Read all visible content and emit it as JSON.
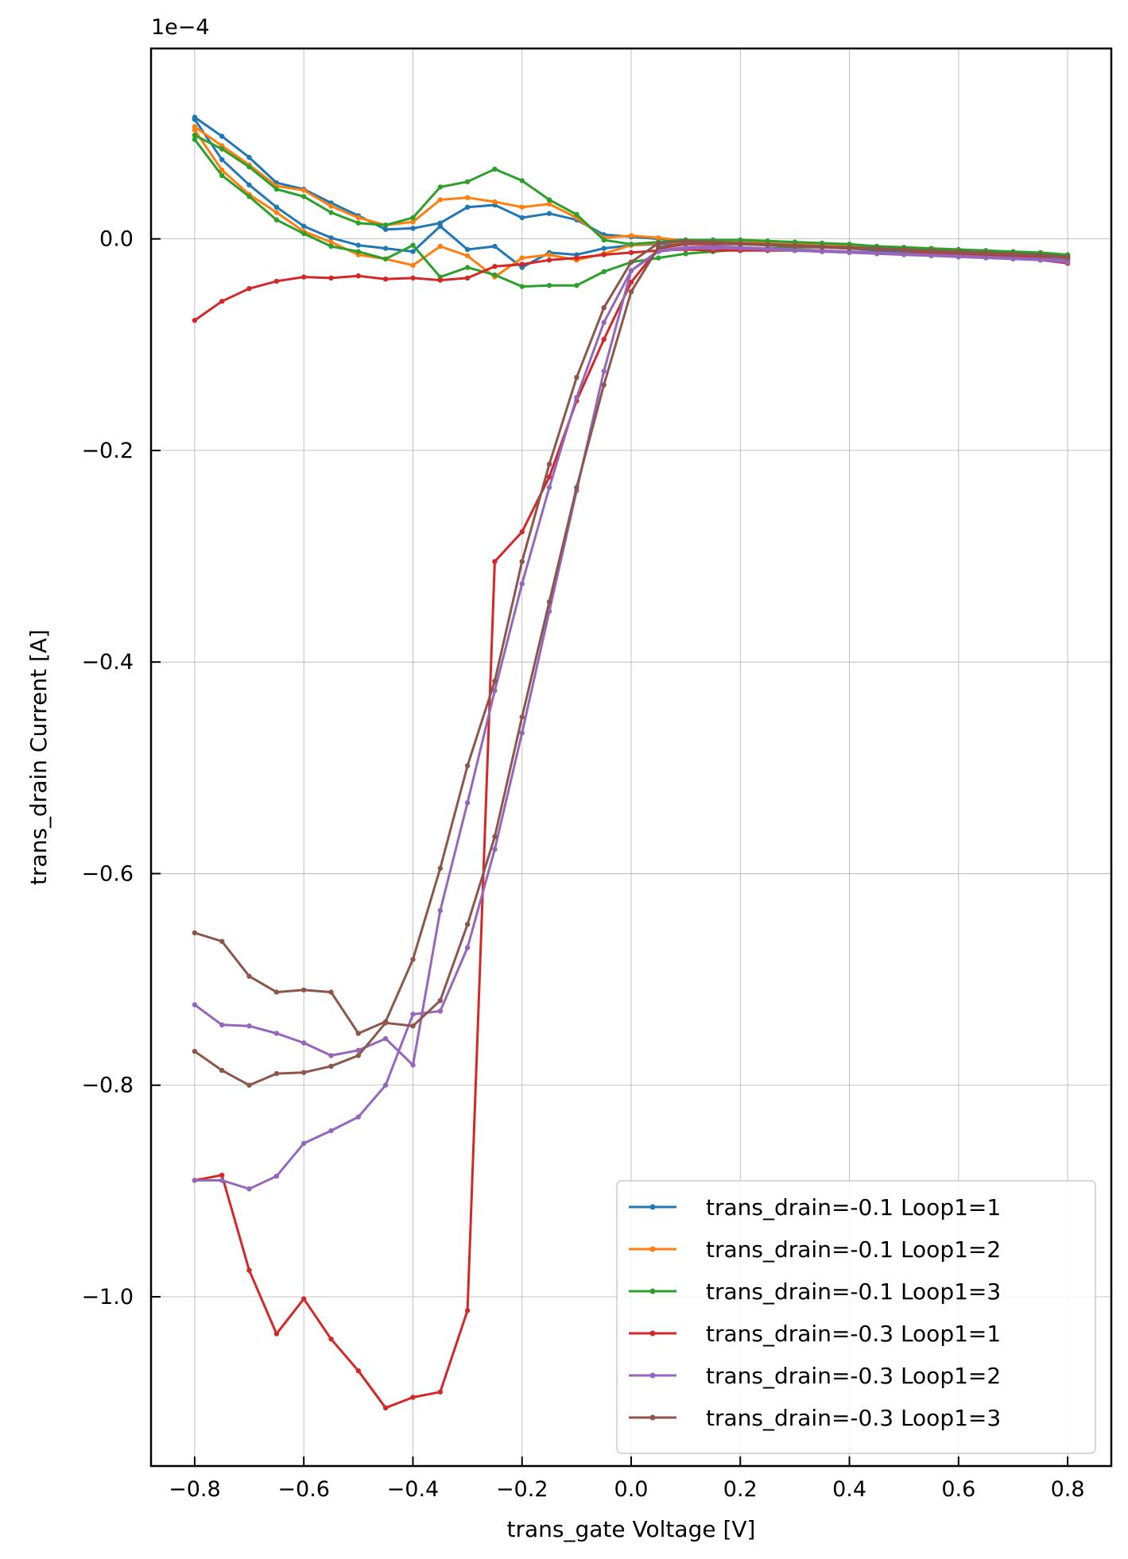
{
  "chart_data": {
    "type": "line",
    "xlabel": "trans_gate Voltage [V]",
    "ylabel": "trans_drain Current [A]",
    "offset_label": "1e−4",
    "y_scale_factor": 0.0001,
    "xlim": [
      -0.88,
      0.88
    ],
    "ylim": [
      -1.16,
      0.18
    ],
    "x_ticks": [
      -0.8,
      -0.6,
      -0.4,
      -0.2,
      0.0,
      0.2,
      0.4,
      0.6,
      0.8
    ],
    "x_tick_labels": [
      "−0.8",
      "−0.6",
      "−0.4",
      "−0.2",
      "0.0",
      "0.2",
      "0.4",
      "0.6",
      "0.8"
    ],
    "y_ticks": [
      0.0,
      -0.2,
      -0.4,
      -0.6,
      -0.8,
      -1.0
    ],
    "y_tick_labels": [
      "0.0",
      "−0.2",
      "−0.4",
      "−0.6",
      "−0.8",
      "−1.0"
    ],
    "grid": true,
    "legend_position": "lower-right",
    "x": [
      -0.8,
      -0.75,
      -0.7,
      -0.65,
      -0.6,
      -0.55,
      -0.5,
      -0.45,
      -0.4,
      -0.35,
      -0.3,
      -0.25,
      -0.2,
      -0.15,
      -0.1,
      -0.05,
      0.0,
      0.05,
      0.1,
      0.15,
      0.2,
      0.25,
      0.3,
      0.35,
      0.4,
      0.45,
      0.5,
      0.55,
      0.6,
      0.65,
      0.7,
      0.75,
      0.8
    ],
    "series": [
      {
        "name": "trans_drain=-0.1 Loop1=1",
        "color": "#1f77b4",
        "forward": [
          0.115,
          0.097,
          0.077,
          0.053,
          0.047,
          0.034,
          0.022,
          0.009,
          0.01,
          0.015,
          0.03,
          0.032,
          0.02,
          0.024,
          0.018,
          0.004,
          0.002,
          0.0,
          -0.001,
          -0.001,
          -0.002,
          -0.003,
          -0.004,
          -0.005,
          -0.006,
          -0.008,
          -0.009,
          -0.01,
          -0.011,
          -0.012,
          -0.014,
          -0.016,
          -0.018
        ],
        "reverse": [
          0.113,
          0.075,
          0.051,
          0.03,
          0.012,
          0.001,
          -0.006,
          -0.009,
          -0.012,
          0.012,
          -0.01,
          -0.007,
          -0.027,
          -0.013,
          -0.015,
          -0.009,
          -0.006,
          -0.005,
          -0.004,
          -0.004,
          -0.005,
          -0.006,
          -0.007,
          -0.008,
          -0.009,
          -0.011,
          -0.012,
          -0.013,
          -0.014,
          -0.015,
          -0.016,
          -0.017,
          -0.019
        ]
      },
      {
        "name": "trans_drain=-0.1 Loop1=2",
        "color": "#ff7f0e",
        "forward": [
          0.106,
          0.088,
          0.07,
          0.05,
          0.046,
          0.031,
          0.02,
          0.013,
          0.016,
          0.037,
          0.039,
          0.035,
          0.03,
          0.033,
          0.02,
          0.001,
          0.003,
          0.001,
          -0.002,
          -0.003,
          -0.002,
          -0.003,
          -0.004,
          -0.005,
          -0.006,
          -0.007,
          -0.008,
          -0.009,
          -0.01,
          -0.012,
          -0.013,
          -0.015,
          -0.017
        ],
        "reverse": [
          0.103,
          0.065,
          0.042,
          0.025,
          0.007,
          -0.003,
          -0.015,
          -0.019,
          -0.025,
          -0.007,
          -0.016,
          -0.036,
          -0.018,
          -0.015,
          -0.02,
          -0.014,
          -0.006,
          -0.004,
          -0.003,
          -0.003,
          -0.004,
          -0.005,
          -0.006,
          -0.007,
          -0.008,
          -0.009,
          -0.01,
          -0.011,
          -0.013,
          -0.014,
          -0.015,
          -0.016,
          -0.018
        ]
      },
      {
        "name": "trans_drain=-0.1 Loop1=3",
        "color": "#2ca02c",
        "forward": [
          0.098,
          0.085,
          0.068,
          0.047,
          0.04,
          0.025,
          0.015,
          0.013,
          0.02,
          0.049,
          0.054,
          0.066,
          0.055,
          0.037,
          0.023,
          -0.001,
          -0.005,
          -0.003,
          -0.001,
          -0.001,
          -0.001,
          -0.002,
          -0.003,
          -0.004,
          -0.005,
          -0.007,
          -0.008,
          -0.009,
          -0.01,
          -0.011,
          -0.012,
          -0.013,
          -0.015
        ],
        "reverse": [
          0.094,
          0.06,
          0.04,
          0.018,
          0.005,
          -0.007,
          -0.012,
          -0.019,
          -0.006,
          -0.036,
          -0.027,
          -0.034,
          -0.045,
          -0.044,
          -0.044,
          -0.031,
          -0.022,
          -0.018,
          -0.014,
          -0.012,
          -0.01,
          -0.009,
          -0.008,
          -0.008,
          -0.008,
          -0.009,
          -0.01,
          -0.011,
          -0.012,
          -0.013,
          -0.014,
          -0.015,
          -0.016
        ]
      },
      {
        "name": "trans_drain=-0.3 Loop1=1",
        "color": "#d62728",
        "forward": [
          -0.077,
          -0.059,
          -0.047,
          -0.04,
          -0.036,
          -0.037,
          -0.035,
          -0.038,
          -0.037,
          -0.039,
          -0.037,
          -0.026,
          -0.024,
          -0.02,
          -0.018,
          -0.015,
          -0.013,
          -0.011,
          -0.01,
          -0.011,
          -0.011,
          -0.011,
          -0.011,
          -0.012,
          -0.012,
          -0.013,
          -0.014,
          -0.014,
          -0.015,
          -0.016,
          -0.017,
          -0.018,
          -0.021
        ],
        "reverse": [
          -0.89,
          -0.885,
          -0.975,
          -1.035,
          -1.002,
          -1.04,
          -1.07,
          -1.105,
          -1.095,
          -1.09,
          -1.013,
          -0.305,
          -0.277,
          -0.225,
          -0.153,
          -0.095,
          -0.041,
          -0.009,
          -0.005,
          -0.005,
          -0.005,
          -0.006,
          -0.007,
          -0.008,
          -0.009,
          -0.01,
          -0.011,
          -0.013,
          -0.014,
          -0.016,
          -0.018,
          -0.02,
          -0.023
        ]
      },
      {
        "name": "trans_drain=-0.3 Loop1=2",
        "color": "#9467bd",
        "forward": [
          -0.724,
          -0.743,
          -0.744,
          -0.751,
          -0.76,
          -0.772,
          -0.767,
          -0.756,
          -0.781,
          -0.635,
          -0.533,
          -0.427,
          -0.326,
          -0.235,
          -0.15,
          -0.079,
          -0.03,
          -0.012,
          -0.009,
          -0.009,
          -0.009,
          -0.01,
          -0.011,
          -0.012,
          -0.013,
          -0.014,
          -0.015,
          -0.016,
          -0.017,
          -0.018,
          -0.019,
          -0.02,
          -0.022
        ],
        "reverse": [
          -0.89,
          -0.89,
          -0.898,
          -0.886,
          -0.855,
          -0.843,
          -0.83,
          -0.8,
          -0.733,
          -0.73,
          -0.67,
          -0.577,
          -0.467,
          -0.352,
          -0.238,
          -0.125,
          -0.03,
          -0.011,
          -0.008,
          -0.007,
          -0.008,
          -0.009,
          -0.01,
          -0.011,
          -0.012,
          -0.013,
          -0.014,
          -0.015,
          -0.016,
          -0.017,
          -0.018,
          -0.019,
          -0.02
        ]
      },
      {
        "name": "trans_drain=-0.3 Loop1=3",
        "color": "#8c564b",
        "forward": [
          -0.656,
          -0.664,
          -0.697,
          -0.712,
          -0.71,
          -0.712,
          -0.751,
          -0.74,
          -0.681,
          -0.595,
          -0.498,
          -0.418,
          -0.305,
          -0.213,
          -0.131,
          -0.065,
          -0.022,
          -0.004,
          -0.002,
          -0.003,
          -0.004,
          -0.005,
          -0.006,
          -0.007,
          -0.008,
          -0.009,
          -0.01,
          -0.011,
          -0.012,
          -0.013,
          -0.014,
          -0.015,
          -0.017
        ],
        "reverse": [
          -0.768,
          -0.786,
          -0.8,
          -0.789,
          -0.788,
          -0.782,
          -0.772,
          -0.741,
          -0.744,
          -0.72,
          -0.648,
          -0.565,
          -0.452,
          -0.343,
          -0.235,
          -0.138,
          -0.05,
          -0.008,
          -0.004,
          -0.004,
          -0.005,
          -0.006,
          -0.007,
          -0.008,
          -0.009,
          -0.01,
          -0.011,
          -0.012,
          -0.013,
          -0.014,
          -0.015,
          -0.016,
          -0.018
        ]
      }
    ]
  }
}
